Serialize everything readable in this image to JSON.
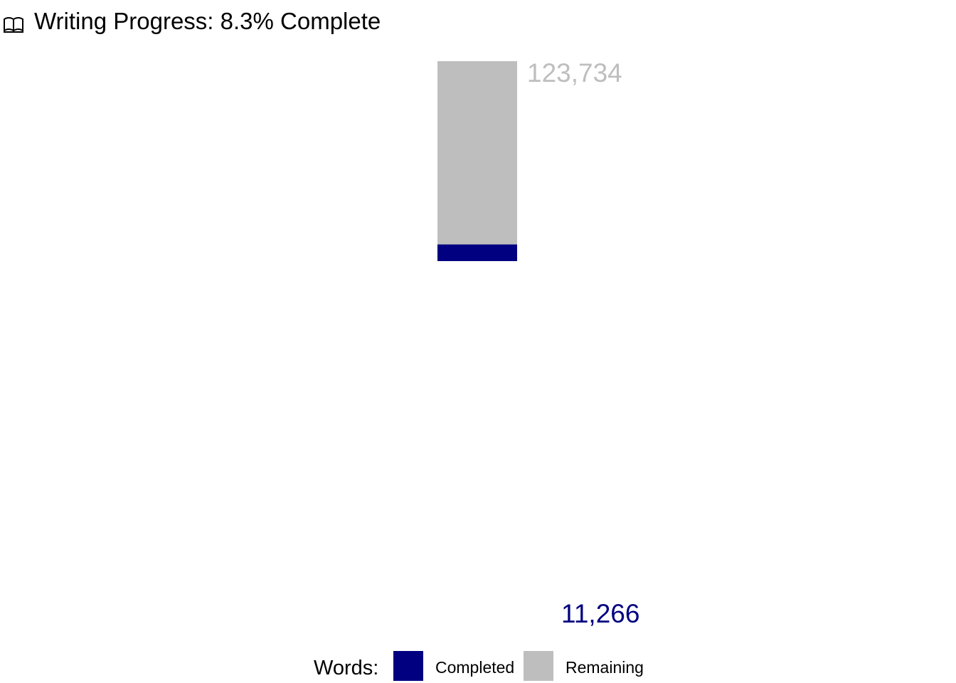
{
  "chart_data": {
    "type": "bar",
    "title": "Writing Progress: 8.3% Complete",
    "title_icon": "book-icon",
    "categories": [
      ""
    ],
    "series": [
      {
        "name": "Completed",
        "values": [
          11266
        ],
        "color": "#000080",
        "label": "11,266"
      },
      {
        "name": "Remaining",
        "values": [
          123734
        ],
        "color": "#bebebe",
        "label": "123,734"
      }
    ],
    "stacked": true,
    "total": 135000,
    "percent_complete": 8.3,
    "legend": {
      "title": "Words:",
      "position": "bottom"
    },
    "grid": false,
    "axes_visible": false
  }
}
